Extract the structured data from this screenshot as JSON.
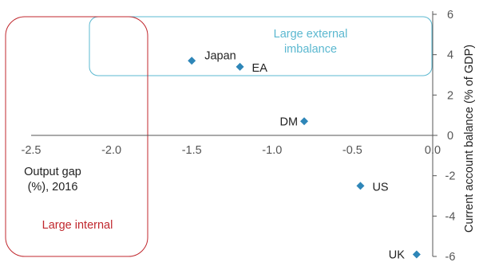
{
  "chart_data": {
    "type": "scatter",
    "x_axis": {
      "label_lines": [
        "Output gap",
        "(%), 2016"
      ],
      "range": [
        -2.5,
        0.0
      ],
      "ticks": [
        {
          "value": -2.5,
          "label": "-2.5"
        },
        {
          "value": -2.0,
          "label": "-2.0"
        },
        {
          "value": -1.5,
          "label": "-1.5"
        },
        {
          "value": -1.0,
          "label": "-1.0"
        },
        {
          "value": -0.5,
          "label": "-0.5"
        },
        {
          "value": 0.0,
          "label": "0.0"
        }
      ]
    },
    "y_axis": {
      "label": "Current account balance (% of GDP)",
      "position": "right",
      "range": [
        -6,
        6
      ],
      "ticks": [
        {
          "value": 6,
          "label": "6"
        },
        {
          "value": 4,
          "label": "4"
        },
        {
          "value": 2,
          "label": "2"
        },
        {
          "value": 0,
          "label": "0"
        },
        {
          "value": -2,
          "label": "-2"
        },
        {
          "value": -4,
          "label": "-4"
        },
        {
          "value": -6,
          "label": "-6"
        }
      ]
    },
    "points": [
      {
        "label": "Japan",
        "x": -1.5,
        "y": 3.7
      },
      {
        "label": "EA",
        "x": -1.2,
        "y": 3.4
      },
      {
        "label": "DM",
        "x": -0.8,
        "y": 0.7
      },
      {
        "label": "US",
        "x": -0.45,
        "y": -2.5
      },
      {
        "label": "UK",
        "x": -0.1,
        "y": -5.9
      }
    ],
    "regions": [
      {
        "label_lines": [
          "Large external",
          "imbalance"
        ],
        "color": "#5bb8d0"
      },
      {
        "label_lines": [
          "Large internal"
        ],
        "color": "#c0272d"
      }
    ],
    "marker_color": "#2e86b8",
    "grid": false
  }
}
